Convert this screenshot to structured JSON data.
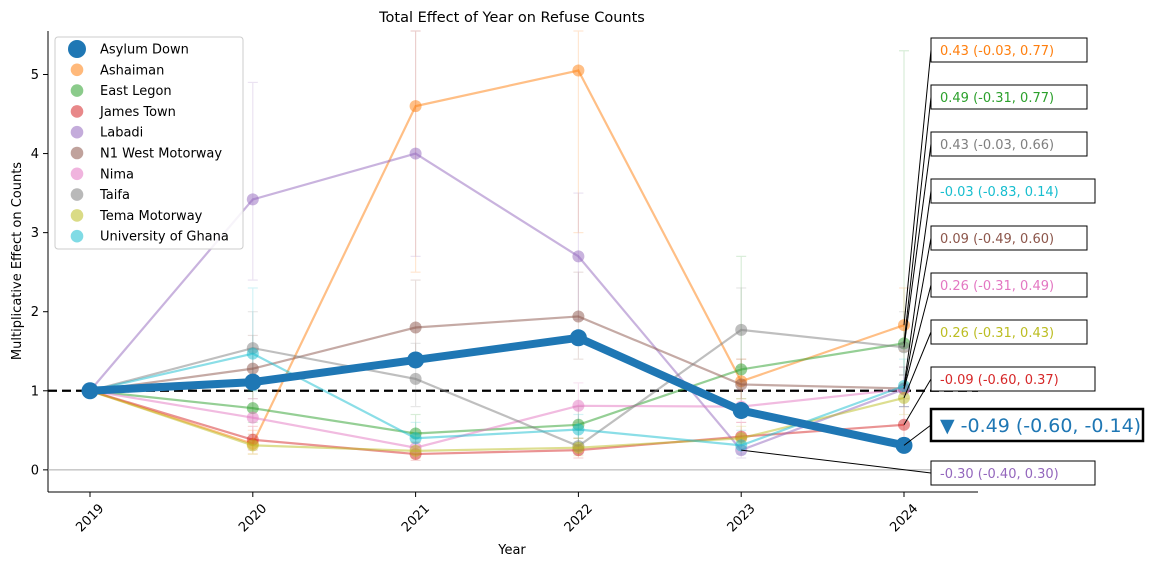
{
  "chart_data": {
    "type": "line",
    "title": "Total Effect of Year on Refuse Counts",
    "xlabel": "Year",
    "ylabel": "Multiplicative Effect on Counts",
    "x": [
      "2019",
      "2020",
      "2021",
      "2022",
      "2023",
      "2024"
    ],
    "xtick_labels": [
      "2019",
      "2020",
      "2021",
      "2022",
      "2023",
      "2024"
    ],
    "yticks": [
      0,
      1,
      2,
      3,
      4,
      5
    ],
    "ylim": [
      -0.28,
      5.55
    ],
    "grid": false,
    "reference_lines": [
      {
        "y": 1,
        "style": "dashed",
        "color": "#000000"
      },
      {
        "y": 0,
        "style": "solid",
        "color": "#aaaaaa"
      }
    ],
    "legend_position": "top-left",
    "series": [
      {
        "name": "Ashaiman",
        "color": "#ff7f0e",
        "values": [
          1.0,
          0.33,
          4.6,
          5.05,
          1.12,
          1.83
        ],
        "err_low": [
          1.0,
          0.2,
          2.5,
          3.0,
          0.9,
          1.5
        ],
        "err_high": [
          1.0,
          0.5,
          5.55,
          5.55,
          1.4,
          2.3
        ]
      },
      {
        "name": "East Legon",
        "color": "#2ca02c",
        "values": [
          1.0,
          0.78,
          0.46,
          0.57,
          1.27,
          1.6
        ],
        "err_low": [
          1.0,
          0.6,
          0.3,
          0.4,
          0.9,
          1.2
        ],
        "err_high": [
          1.0,
          1.0,
          0.7,
          0.8,
          2.7,
          5.3
        ]
      },
      {
        "name": "James Town",
        "color": "#d62728",
        "values": [
          1.0,
          0.38,
          0.2,
          0.25,
          0.42,
          0.57
        ],
        "err_low": [
          1.0,
          0.25,
          0.12,
          0.15,
          0.3,
          0.4
        ],
        "err_high": [
          1.0,
          0.55,
          0.35,
          0.4,
          0.6,
          0.9
        ]
      },
      {
        "name": "Labadi",
        "color": "#9467bd",
        "values": [
          1.0,
          3.42,
          4.0,
          2.7,
          0.25,
          1.02
        ],
        "err_low": [
          1.0,
          2.4,
          2.7,
          1.9,
          0.15,
          0.8
        ],
        "err_high": [
          1.0,
          4.9,
          5.55,
          3.5,
          0.4,
          1.3
        ]
      },
      {
        "name": "N1 West Motorway",
        "color": "#8c564b",
        "values": [
          1.0,
          1.28,
          1.8,
          1.94,
          1.08,
          1.03
        ],
        "err_low": [
          1.0,
          0.9,
          1.3,
          1.4,
          0.8,
          0.8
        ],
        "err_high": [
          1.0,
          1.7,
          2.4,
          2.5,
          1.4,
          1.3
        ]
      },
      {
        "name": "Nima",
        "color": "#e377c2",
        "values": [
          1.0,
          0.66,
          0.28,
          0.81,
          0.8,
          1.02
        ],
        "err_low": [
          1.0,
          0.45,
          0.18,
          0.6,
          0.6,
          0.8
        ],
        "err_high": [
          1.0,
          0.9,
          0.4,
          1.1,
          1.0,
          1.2
        ]
      },
      {
        "name": "Taifa",
        "color": "#7f7f7f",
        "values": [
          1.0,
          1.54,
          1.15,
          0.3,
          1.77,
          1.55
        ],
        "err_low": [
          1.0,
          1.1,
          0.8,
          0.2,
          1.3,
          1.2
        ],
        "err_high": [
          1.0,
          2.0,
          1.6,
          0.5,
          2.3,
          2.0
        ]
      },
      {
        "name": "Tema Motorway",
        "color": "#bcbd22",
        "values": [
          1.0,
          0.31,
          0.24,
          0.28,
          0.4,
          0.91
        ],
        "err_low": [
          1.0,
          0.2,
          0.15,
          0.18,
          0.28,
          0.7
        ],
        "err_high": [
          1.0,
          0.45,
          0.35,
          0.4,
          0.55,
          1.1
        ]
      },
      {
        "name": "University of Ghana",
        "color": "#17becf",
        "values": [
          1.0,
          1.47,
          0.4,
          0.51,
          0.31,
          1.06
        ],
        "err_low": [
          1.0,
          1.0,
          0.25,
          0.35,
          0.2,
          0.8
        ],
        "err_high": [
          1.0,
          2.3,
          0.6,
          0.7,
          0.5,
          1.4
        ]
      }
    ],
    "highlight_series": {
      "name": "Asylum Down",
      "color": "#1f77b4",
      "values": [
        1.0,
        1.11,
        1.39,
        1.67,
        0.75,
        0.31
      ]
    },
    "annotations": [
      {
        "text": "0.43 (-0.03, 0.77)",
        "color": "#ff7f0e",
        "bold": false
      },
      {
        "text": "0.49 (-0.31, 0.77)",
        "color": "#2ca02c",
        "bold": false
      },
      {
        "text": "0.43 (-0.03, 0.66)",
        "color": "#7f7f7f",
        "bold": false
      },
      {
        "text": "-0.03 (-0.83, 0.14)",
        "color": "#17becf",
        "bold": false
      },
      {
        "text": "0.09 (-0.49, 0.60)",
        "color": "#8c564b",
        "bold": false
      },
      {
        "text": "0.26 (-0.31, 0.49)",
        "color": "#e377c2",
        "bold": false
      },
      {
        "text": "0.26 (-0.31, 0.43)",
        "color": "#bcbd22",
        "bold": false
      },
      {
        "text": "-0.09 (-0.60, 0.37)",
        "color": "#d62728",
        "bold": false
      },
      {
        "text": "▼ -0.49 (-0.60, -0.14)",
        "color": "#1f77b4",
        "bold": true
      },
      {
        "text": "-0.30 (-0.40, 0.30)",
        "color": "#9467bd",
        "bold": false
      }
    ]
  }
}
